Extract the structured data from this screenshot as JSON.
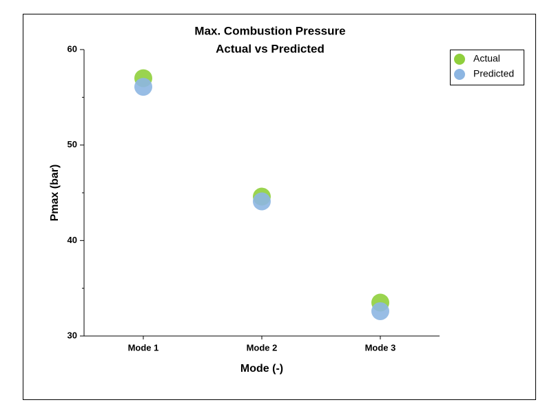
{
  "chart_data": {
    "type": "scatter",
    "title": "Max. Combustion Pressure",
    "subtitle": "Actual vs Predicted",
    "x_label": "Mode (-)",
    "y_label": "Pmax (bar)",
    "categories": [
      "Mode 1",
      "Mode 2",
      "Mode 3"
    ],
    "series": [
      {
        "name": "Actual",
        "color": "#8fcf3c",
        "values": [
          57,
          44.6,
          33.5
        ]
      },
      {
        "name": "Predicted",
        "color": "#8db6e2",
        "values": [
          56.1,
          44.1,
          32.6
        ]
      }
    ],
    "ylim": [
      30,
      60
    ],
    "yticks": [
      30,
      40,
      50,
      60
    ],
    "yminorticks": [
      35,
      45,
      55
    ],
    "grid": false,
    "legend": "upper right"
  }
}
